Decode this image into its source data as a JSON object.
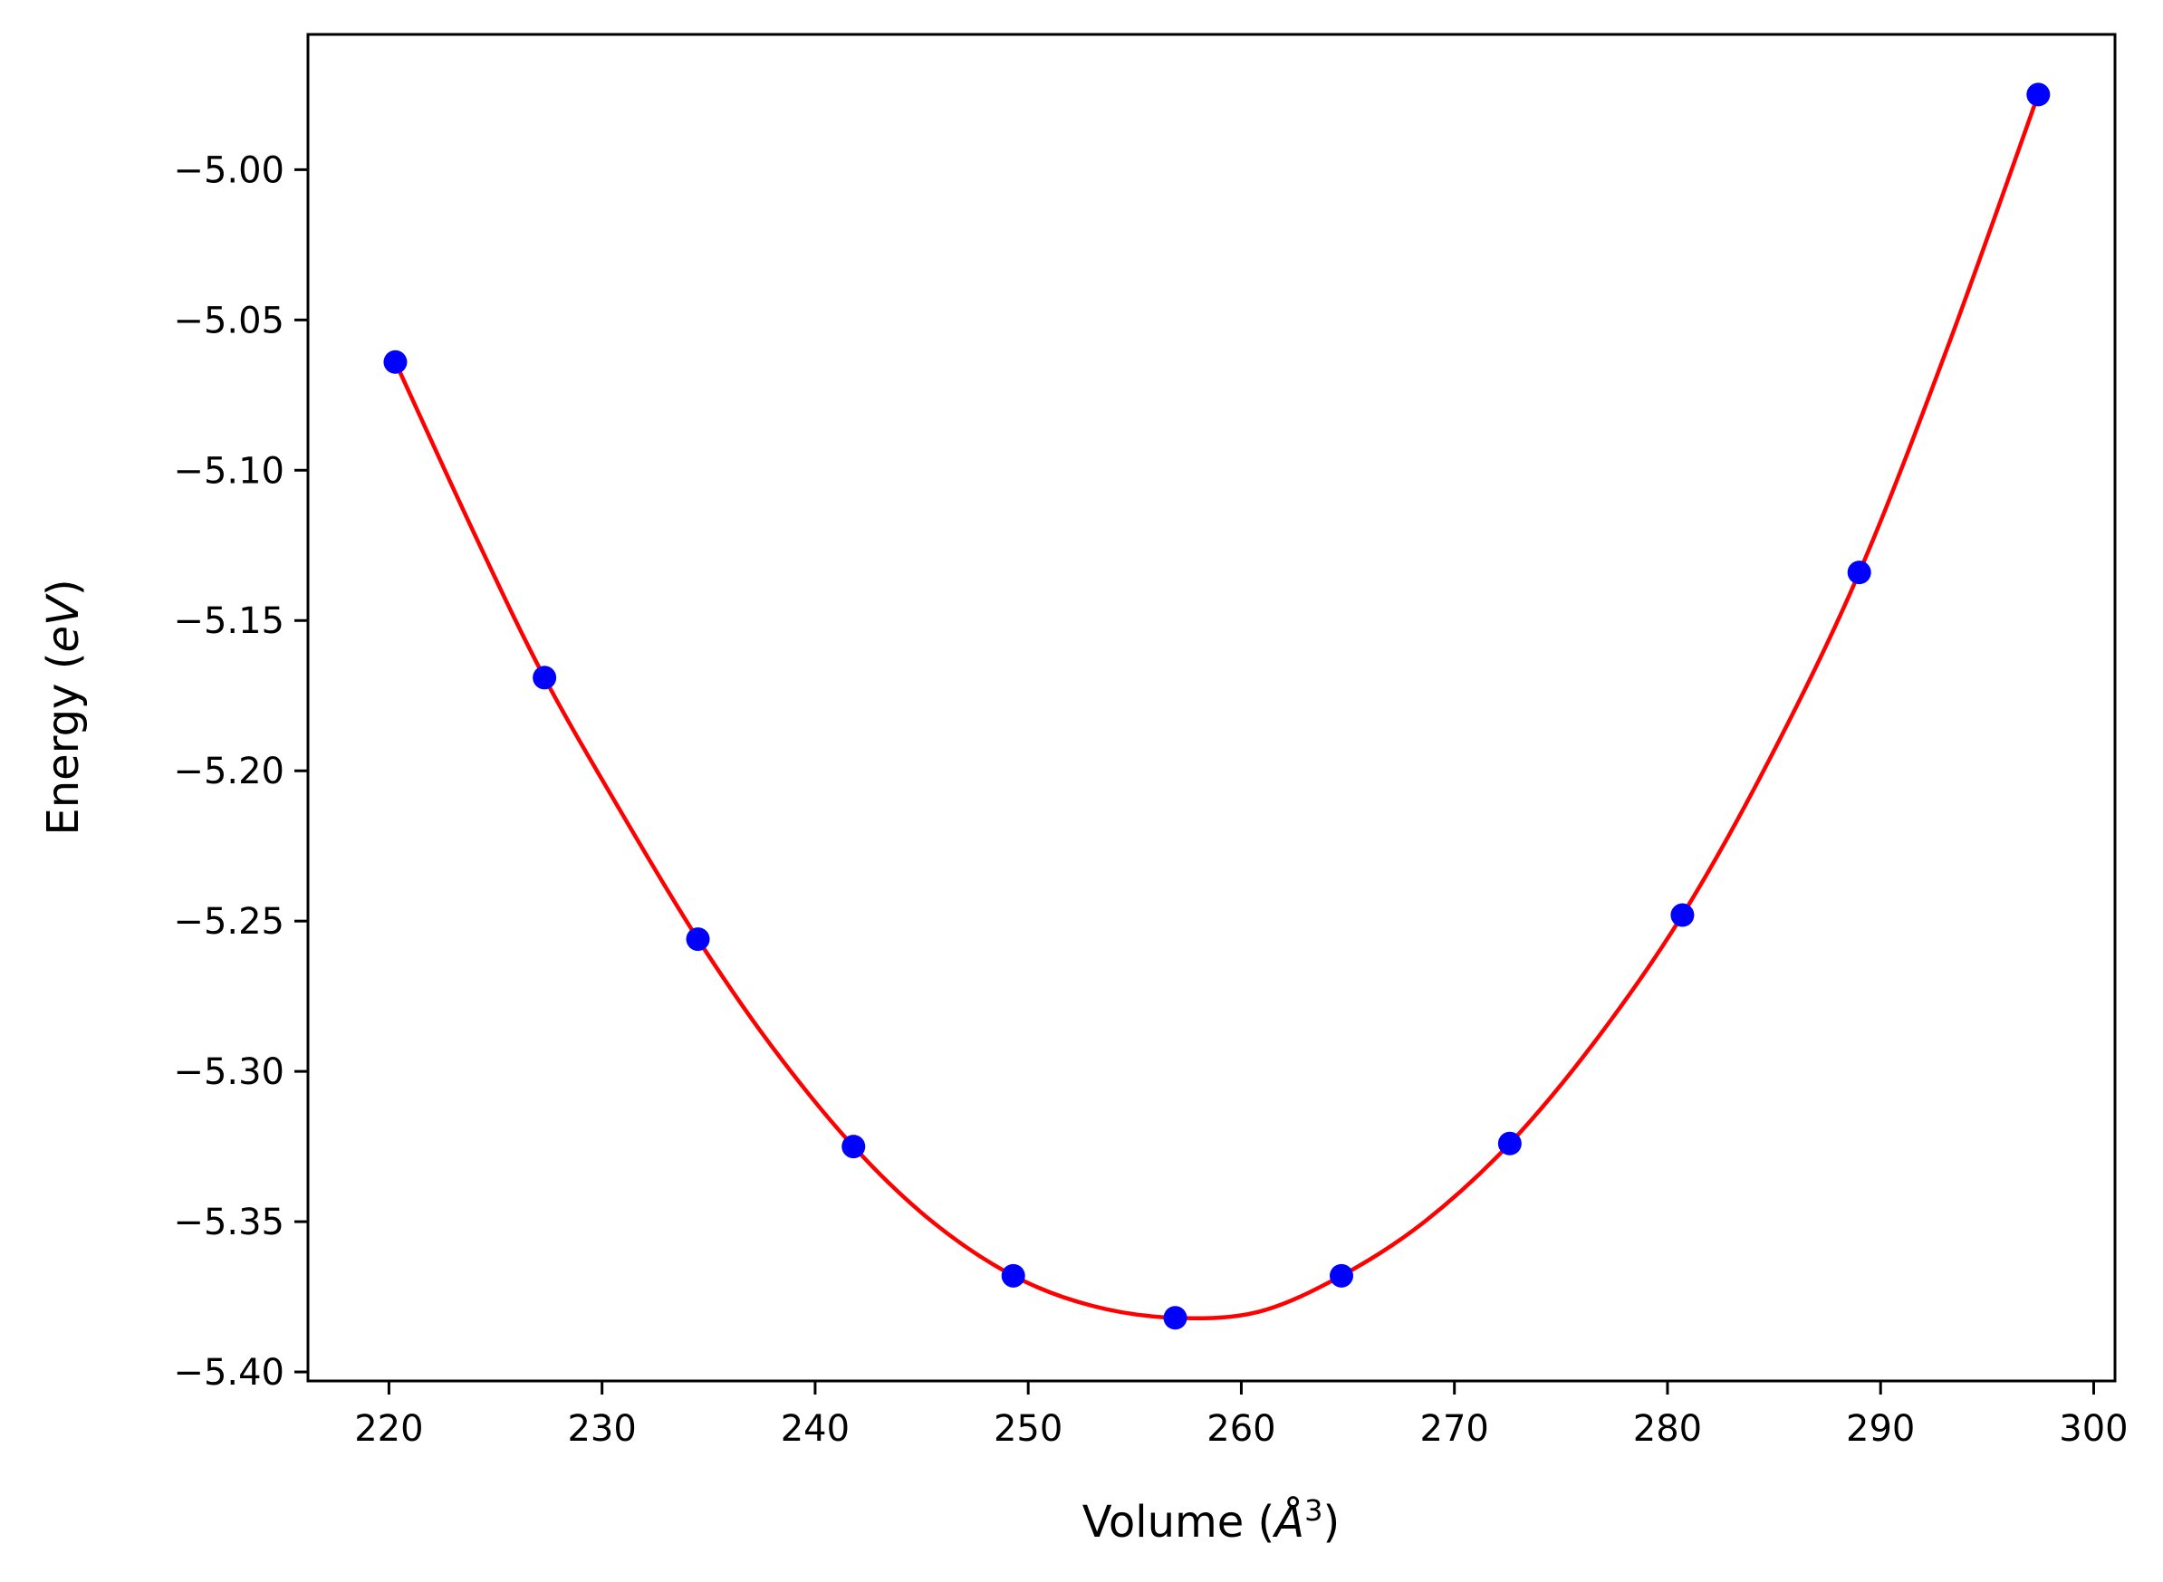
{
  "chart_data": {
    "type": "scatter",
    "title": "",
    "xlabel_parts": [
      "Volume (",
      "Å",
      "3",
      ")"
    ],
    "ylabel_parts": [
      "Energy ",
      "(",
      "eV",
      ")"
    ],
    "xlim": [
      216.2,
      301.0
    ],
    "ylim": [
      -5.403,
      -4.955
    ],
    "xticks": [
      220,
      230,
      240,
      250,
      260,
      270,
      280,
      290,
      300
    ],
    "yticks": [
      -5.0,
      -5.05,
      -5.1,
      -5.15,
      -5.2,
      -5.25,
      -5.3,
      -5.35,
      -5.4
    ],
    "xtick_labels": [
      "220",
      "230",
      "240",
      "250",
      "260",
      "270",
      "280",
      "290",
      "300"
    ],
    "ytick_labels": [
      "−5.00",
      "−5.05",
      "−5.10",
      "−5.15",
      "−5.20",
      "−5.25",
      "−5.30",
      "−5.35",
      "−5.40"
    ],
    "grid": false,
    "legend": "none",
    "series": [
      {
        "kind": "points",
        "color": "#0000ff",
        "x": [
          220.3,
          227.3,
          234.5,
          241.8,
          249.3,
          256.9,
          264.7,
          272.6,
          280.7,
          289.0,
          297.4
        ],
        "y": [
          -5.064,
          -5.169,
          -5.256,
          -5.325,
          -5.368,
          -5.382,
          -5.368,
          -5.324,
          -5.248,
          -5.134,
          -4.975
        ]
      },
      {
        "kind": "fit_curve",
        "color": "#ff0000",
        "x": [
          220.3,
          224.0,
          227.3,
          231.0,
          234.5,
          238.0,
          241.8,
          245.5,
          249.3,
          253.0,
          256.9,
          260.8,
          264.7,
          268.6,
          272.6,
          276.6,
          280.7,
          284.8,
          289.0,
          293.2,
          297.4
        ],
        "y": [
          -5.064,
          -5.121,
          -5.169,
          -5.215,
          -5.256,
          -5.292,
          -5.325,
          -5.35,
          -5.368,
          -5.378,
          -5.382,
          -5.38,
          -5.368,
          -5.35,
          -5.324,
          -5.29,
          -5.248,
          -5.196,
          -5.134,
          -5.058,
          -4.975
        ]
      }
    ]
  }
}
